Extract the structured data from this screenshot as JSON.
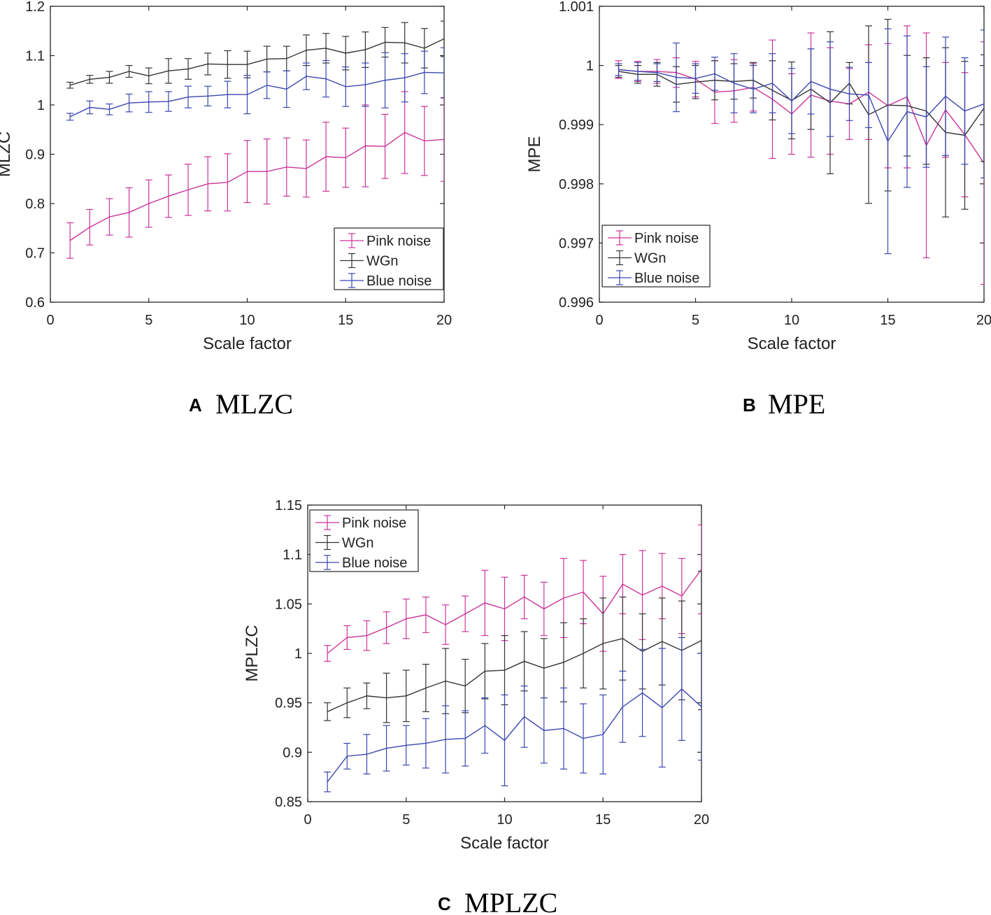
{
  "chart_data": [
    {
      "type": "line",
      "error_bars": true,
      "panel_letter": "A",
      "panel_title": "MLZC",
      "xlabel": "Scale factor",
      "ylabel": "MLZC",
      "xlim": [
        0,
        20
      ],
      "ylim": [
        0.6,
        1.2
      ],
      "xticks": [
        "0",
        "5",
        "10",
        "15",
        "20"
      ],
      "yticks": [
        "0.6",
        "0.7",
        "0.8",
        "0.9",
        "1",
        "1.1",
        "1.2"
      ],
      "legend_position": "bottom-right",
      "x": [
        1,
        2,
        3,
        4,
        5,
        6,
        7,
        8,
        9,
        10,
        11,
        12,
        13,
        14,
        15,
        16,
        17,
        18,
        19,
        20
      ],
      "series": [
        {
          "name": "Pink noise",
          "color": "#cc3399",
          "values": [
            0.725,
            0.752,
            0.773,
            0.782,
            0.8,
            0.815,
            0.828,
            0.84,
            0.843,
            0.865,
            0.865,
            0.874,
            0.871,
            0.895,
            0.893,
            0.917,
            0.916,
            0.944,
            0.927,
            0.93
          ],
          "errors": [
            0.036,
            0.036,
            0.037,
            0.05,
            0.048,
            0.043,
            0.052,
            0.055,
            0.058,
            0.063,
            0.066,
            0.059,
            0.058,
            0.07,
            0.06,
            0.083,
            0.065,
            0.083,
            0.07,
            0.085
          ]
        },
        {
          "name": "WGn",
          "color": "#333333",
          "values": [
            1.04,
            1.052,
            1.056,
            1.068,
            1.059,
            1.069,
            1.073,
            1.083,
            1.082,
            1.082,
            1.093,
            1.094,
            1.111,
            1.115,
            1.105,
            1.112,
            1.127,
            1.126,
            1.115,
            1.134
          ],
          "errors": [
            0.006,
            0.008,
            0.012,
            0.012,
            0.016,
            0.025,
            0.021,
            0.022,
            0.028,
            0.027,
            0.026,
            0.025,
            0.031,
            0.03,
            0.034,
            0.036,
            0.03,
            0.041,
            0.04,
            0.036
          ]
        },
        {
          "name": "Blue noise",
          "color": "#3a47b0",
          "values": [
            0.976,
            0.995,
            0.991,
            1.004,
            1.006,
            1.007,
            1.016,
            1.018,
            1.021,
            1.021,
            1.04,
            1.032,
            1.058,
            1.053,
            1.037,
            1.041,
            1.05,
            1.055,
            1.066,
            1.065
          ],
          "errors": [
            0.007,
            0.013,
            0.011,
            0.018,
            0.021,
            0.02,
            0.022,
            0.02,
            0.027,
            0.039,
            0.027,
            0.037,
            0.027,
            0.037,
            0.04,
            0.044,
            0.056,
            0.049,
            0.043,
            0.051
          ]
        }
      ]
    },
    {
      "type": "line",
      "error_bars": true,
      "panel_letter": "B",
      "panel_title": "MPE",
      "xlabel": "Scale factor",
      "ylabel": "MPE",
      "xlim": [
        0,
        20
      ],
      "ylim": [
        0.996,
        1.001
      ],
      "xticks": [
        "0",
        "5",
        "10",
        "15",
        "20"
      ],
      "yticks": [
        "0.996",
        "0.997",
        "0.998",
        "0.999",
        "1",
        "1.001"
      ],
      "legend_position": "bottom-left",
      "x": [
        1,
        2,
        3,
        4,
        5,
        6,
        7,
        8,
        9,
        10,
        11,
        12,
        13,
        14,
        15,
        16,
        17,
        18,
        19,
        20
      ],
      "series": [
        {
          "name": "Pink noise",
          "color": "#cc3399",
          "values": [
            0.99993,
            0.9999,
            0.9999,
            0.99988,
            0.99977,
            0.99955,
            0.99957,
            0.99963,
            0.99943,
            0.99918,
            0.9995,
            0.9994,
            0.99935,
            0.99955,
            0.99932,
            0.99947,
            0.99865,
            0.99925,
            0.99883,
            0.99835
          ],
          "errors": [
            0.00015,
            0.00017,
            0.0002,
            0.00025,
            0.0003,
            0.00053,
            0.00053,
            0.0004,
            0.001,
            0.00068,
            0.00105,
            0.0009,
            0.0006,
            0.0008,
            0.00105,
            0.0012,
            0.0019,
            0.0008,
            0.00105,
            0.00205
          ]
        },
        {
          "name": "WGn",
          "color": "#333333",
          "values": [
            0.9999,
            0.99985,
            0.99985,
            0.99968,
            0.99972,
            0.99975,
            0.99973,
            0.99975,
            0.99958,
            0.99941,
            0.9996,
            0.99937,
            0.9997,
            0.99917,
            0.99933,
            0.99932,
            0.99923,
            0.99887,
            0.99882,
            0.99928
          ],
          "errors": [
            0.0001,
            0.00015,
            0.0002,
            0.0003,
            0.00028,
            0.00033,
            0.0003,
            0.0003,
            0.0005,
            0.00065,
            0.00068,
            0.0012,
            0.00035,
            0.0015,
            0.00145,
            0.00085,
            0.0009,
            0.00143,
            0.00125,
            0.0009
          ]
        },
        {
          "name": "Blue noise",
          "color": "#3a47b0",
          "values": [
            0.99993,
            0.9999,
            0.99988,
            0.9998,
            0.99978,
            0.99986,
            0.9997,
            0.9996,
            0.9997,
            0.9994,
            0.99973,
            0.9996,
            0.99952,
            0.9995,
            0.99872,
            0.99922,
            0.99913,
            0.99948,
            0.99923,
            0.99935
          ],
          "errors": [
            0.0001,
            0.00015,
            0.00015,
            0.00058,
            0.00025,
            0.00028,
            0.0005,
            0.0004,
            0.0005,
            0.00055,
            0.00055,
            0.0008,
            0.00045,
            0.00055,
            0.0019,
            0.00128,
            0.00085,
            0.001,
            0.0009,
            0.00125
          ]
        }
      ]
    },
    {
      "type": "line",
      "error_bars": true,
      "panel_letter": "C",
      "panel_title": "MPLZC",
      "xlabel": "Scale factor",
      "ylabel": "MPLZC",
      "xlim": [
        0,
        20
      ],
      "ylim": [
        0.85,
        1.15
      ],
      "xticks": [
        "0",
        "5",
        "10",
        "15",
        "20"
      ],
      "yticks": [
        "0.85",
        "0.9",
        "0.95",
        "1",
        "1.05",
        "1.1",
        "1.15"
      ],
      "legend_position": "top-left",
      "x": [
        1,
        2,
        3,
        4,
        5,
        6,
        7,
        8,
        9,
        10,
        11,
        12,
        13,
        14,
        15,
        16,
        17,
        18,
        19,
        20
      ],
      "series": [
        {
          "name": "Pink noise",
          "color": "#cc3399",
          "values": [
            1.0,
            1.016,
            1.018,
            1.026,
            1.035,
            1.039,
            1.029,
            1.04,
            1.051,
            1.045,
            1.057,
            1.045,
            1.056,
            1.062,
            1.04,
            1.07,
            1.059,
            1.068,
            1.058,
            1.085
          ],
          "errors": [
            0.008,
            0.012,
            0.015,
            0.016,
            0.02,
            0.018,
            0.02,
            0.018,
            0.033,
            0.032,
            0.022,
            0.027,
            0.04,
            0.032,
            0.038,
            0.03,
            0.045,
            0.033,
            0.038,
            0.045
          ]
        },
        {
          "name": "WGn",
          "color": "#333333",
          "values": [
            0.941,
            0.95,
            0.957,
            0.955,
            0.957,
            0.965,
            0.972,
            0.967,
            0.982,
            0.983,
            0.992,
            0.985,
            0.991,
            1.0,
            1.01,
            1.015,
            1.002,
            1.012,
            1.003,
            1.013
          ],
          "errors": [
            0.009,
            0.015,
            0.013,
            0.025,
            0.026,
            0.024,
            0.033,
            0.027,
            0.028,
            0.035,
            0.03,
            0.03,
            0.04,
            0.035,
            0.046,
            0.042,
            0.038,
            0.044,
            0.05,
            0.07
          ]
        },
        {
          "name": "Blue noise",
          "color": "#3a47b0",
          "values": [
            0.87,
            0.896,
            0.898,
            0.904,
            0.907,
            0.909,
            0.913,
            0.914,
            0.927,
            0.912,
            0.936,
            0.922,
            0.924,
            0.914,
            0.918,
            0.946,
            0.96,
            0.945,
            0.964,
            0.946
          ],
          "errors": [
            0.01,
            0.013,
            0.02,
            0.023,
            0.02,
            0.025,
            0.034,
            0.028,
            0.028,
            0.046,
            0.031,
            0.033,
            0.041,
            0.035,
            0.04,
            0.036,
            0.044,
            0.06,
            0.052,
            0.054
          ]
        }
      ]
    }
  ]
}
